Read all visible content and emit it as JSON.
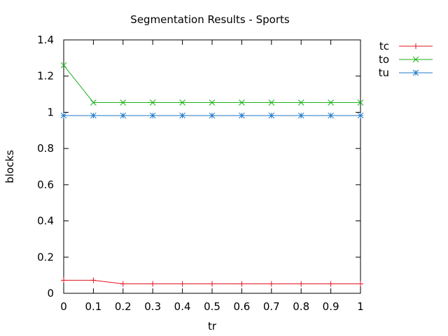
{
  "chart_data": {
    "type": "line",
    "title": "Segmentation Results - Sports",
    "xlabel": "tr",
    "ylabel": "blocks",
    "xlim": [
      0,
      1
    ],
    "ylim": [
      0,
      1.4
    ],
    "x_ticks": [
      "0",
      "0.1",
      "0.2",
      "0.3",
      "0.4",
      "0.5",
      "0.6",
      "0.7",
      "0.8",
      "0.9",
      "1"
    ],
    "y_ticks": [
      "0",
      "0.2",
      "0.4",
      "0.6",
      "0.8",
      "1",
      "1.2",
      "1.4"
    ],
    "grid": false,
    "legend_position": "outside-right-top",
    "x": [
      0,
      0.1,
      0.2,
      0.3,
      0.4,
      0.5,
      0.6,
      0.7,
      0.8,
      0.9,
      1.0
    ],
    "series": [
      {
        "name": "tc",
        "color": "#e0141e",
        "marker": "plus",
        "values": [
          0.072,
          0.072,
          0.052,
          0.052,
          0.052,
          0.052,
          0.052,
          0.052,
          0.052,
          0.052,
          0.052
        ]
      },
      {
        "name": "to",
        "color": "#19b219",
        "marker": "cross",
        "values": [
          1.26,
          1.054,
          1.054,
          1.054,
          1.054,
          1.054,
          1.054,
          1.054,
          1.054,
          1.054,
          1.054
        ]
      },
      {
        "name": "tu",
        "color": "#1f78c8",
        "marker": "star",
        "values": [
          0.982,
          0.982,
          0.982,
          0.982,
          0.982,
          0.982,
          0.982,
          0.982,
          0.982,
          0.982,
          0.982
        ]
      }
    ]
  }
}
